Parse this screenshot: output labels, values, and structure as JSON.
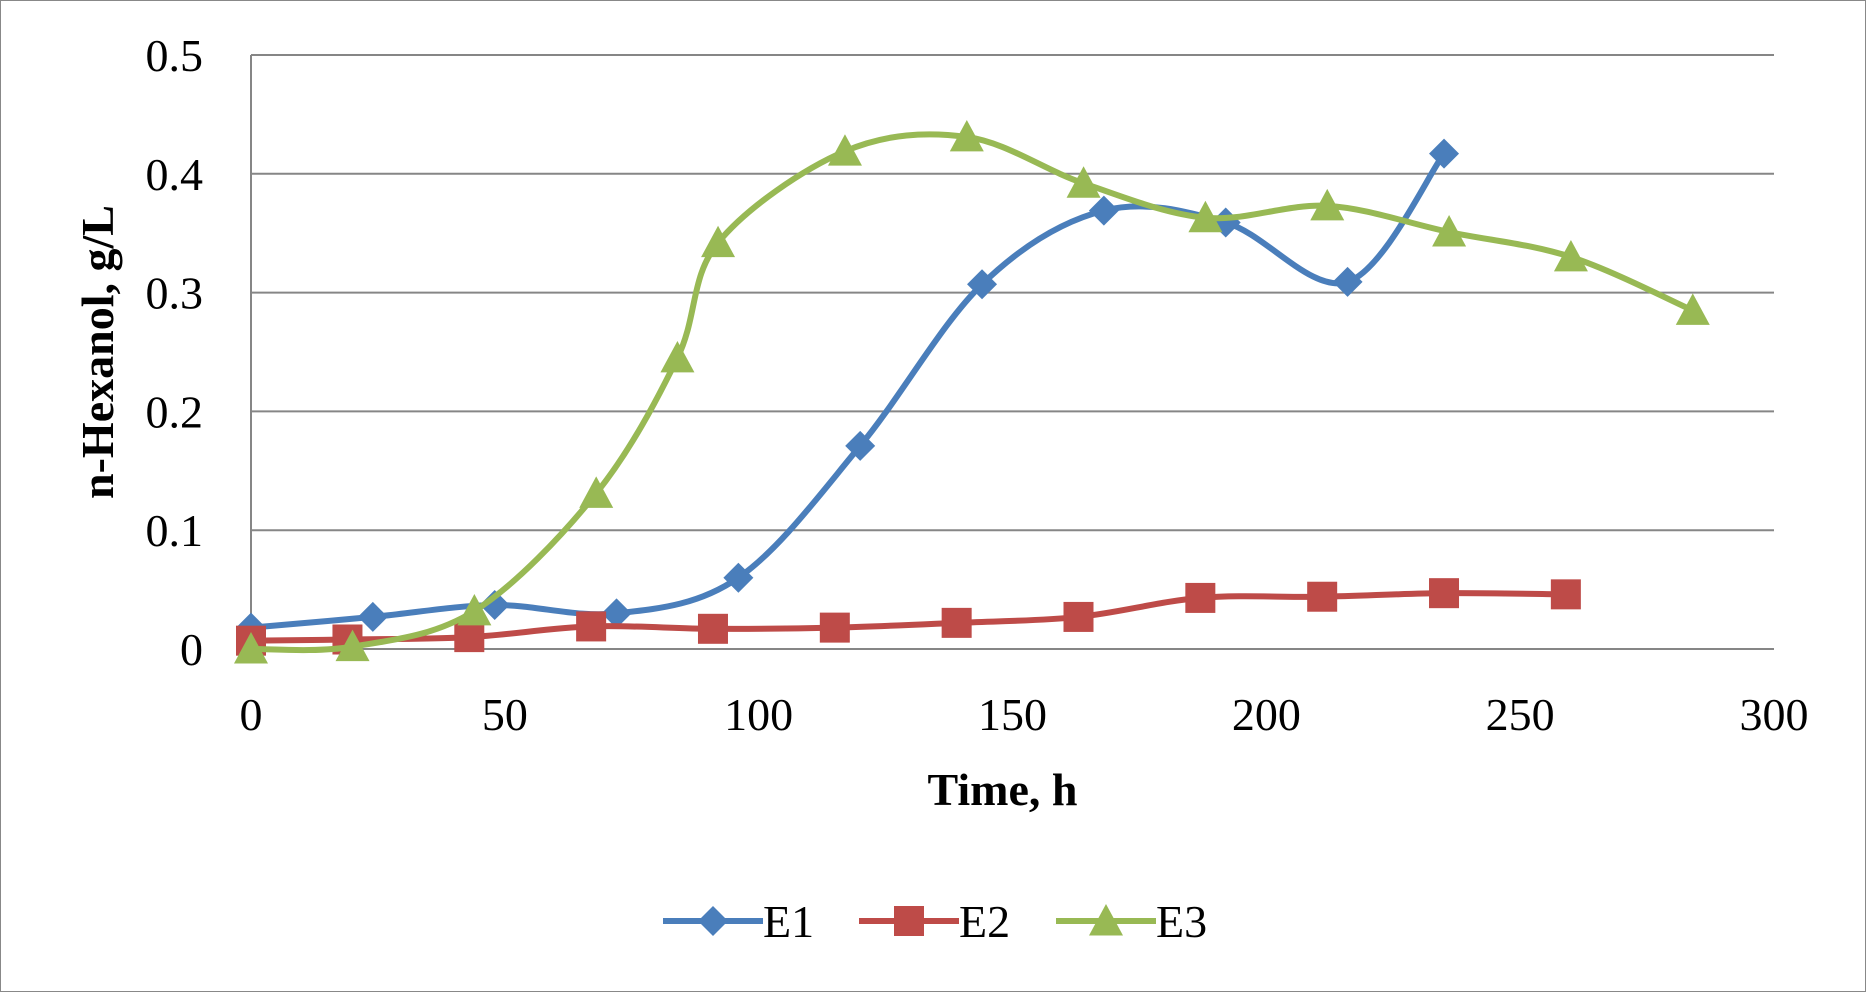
{
  "chart_data": {
    "type": "line",
    "title": "",
    "xlabel": "Time, h",
    "ylabel": "n-Hexanol, g/L",
    "xlim": [
      0,
      300
    ],
    "ylim": [
      0,
      0.5
    ],
    "xticks": [
      0,
      50,
      100,
      150,
      200,
      250,
      300
    ],
    "yticks": [
      0,
      0.1,
      0.2,
      0.3,
      0.4,
      0.5
    ],
    "grid": "horizontal",
    "smooth": true,
    "legend": "bottom",
    "series": [
      {
        "name": "E1",
        "color": "#4A7EBB",
        "marker": "diamond",
        "x": [
          0,
          24,
          48,
          72,
          96,
          120,
          144,
          168,
          192,
          216,
          235
        ],
        "y": [
          0.018,
          0.027,
          0.037,
          0.03,
          0.06,
          0.171,
          0.307,
          0.369,
          0.359,
          0.309,
          0.417
        ]
      },
      {
        "name": "E2",
        "color": "#BE4B48",
        "marker": "square",
        "x": [
          0,
          19,
          43,
          67,
          91,
          115,
          139,
          163,
          187,
          211,
          235,
          259
        ],
        "y": [
          0.007,
          0.008,
          0.01,
          0.019,
          0.017,
          0.018,
          0.022,
          0.027,
          0.043,
          0.044,
          0.047,
          0.046
        ]
      },
      {
        "name": "E3",
        "color": "#98B954",
        "marker": "triangle",
        "x": [
          0,
          20,
          44,
          68,
          84,
          92,
          117,
          141,
          164,
          188,
          212,
          236,
          260,
          284
        ],
        "y": [
          0.0,
          0.002,
          0.032,
          0.131,
          0.245,
          0.342,
          0.419,
          0.431,
          0.392,
          0.363,
          0.373,
          0.351,
          0.33,
          0.285
        ]
      }
    ]
  }
}
